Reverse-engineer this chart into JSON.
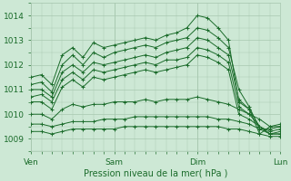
{
  "bg_color": "#cde8d5",
  "grid_color": "#a8c8b0",
  "line_color": "#1a6b2a",
  "xlabel": "Pression niveau de la mer( hPa )",
  "xlim": [
    0,
    72
  ],
  "ylim": [
    1008.5,
    1014.5
  ],
  "yticks": [
    1009,
    1010,
    1011,
    1012,
    1013,
    1014
  ],
  "xtick_positions": [
    0,
    24,
    48,
    72
  ],
  "xtick_labels": [
    "Ven",
    "Sam",
    "Dim",
    "Lun"
  ],
  "lines": [
    {
      "x": [
        0,
        3,
        6,
        9,
        12,
        15,
        18,
        21,
        24,
        27,
        30,
        33,
        36,
        39,
        42,
        45,
        48,
        51,
        54,
        57,
        60,
        63,
        66,
        69,
        72
      ],
      "y": [
        1011.5,
        1011.6,
        1011.2,
        1012.4,
        1012.7,
        1012.3,
        1012.9,
        1012.7,
        1012.8,
        1012.9,
        1013.0,
        1013.1,
        1013.0,
        1013.2,
        1013.3,
        1013.5,
        1014.0,
        1013.9,
        1013.5,
        1013.0,
        1010.5,
        1010.2,
        1009.2,
        1009.5,
        1009.6
      ]
    },
    {
      "x": [
        0,
        3,
        6,
        9,
        12,
        15,
        18,
        21,
        24,
        27,
        30,
        33,
        36,
        39,
        42,
        45,
        48,
        51,
        54,
        57,
        60,
        63,
        66,
        69,
        72
      ],
      "y": [
        1011.2,
        1011.3,
        1010.9,
        1012.0,
        1012.4,
        1012.0,
        1012.5,
        1012.3,
        1012.5,
        1012.6,
        1012.7,
        1012.8,
        1012.7,
        1012.9,
        1013.0,
        1013.1,
        1013.5,
        1013.4,
        1013.1,
        1012.7,
        1011.0,
        1010.3,
        1009.4,
        1009.4,
        1009.5
      ]
    },
    {
      "x": [
        0,
        3,
        6,
        9,
        12,
        15,
        18,
        21,
        24,
        27,
        30,
        33,
        36,
        39,
        42,
        45,
        48,
        51,
        54,
        57,
        60,
        63,
        66,
        69,
        72
      ],
      "y": [
        1011.0,
        1011.0,
        1010.7,
        1011.7,
        1012.0,
        1011.7,
        1012.1,
        1012.0,
        1012.1,
        1012.2,
        1012.3,
        1012.4,
        1012.3,
        1012.5,
        1012.6,
        1012.7,
        1013.1,
        1013.0,
        1012.7,
        1012.4,
        1010.6,
        1010.2,
        1009.5,
        1009.3,
        1009.4
      ]
    },
    {
      "x": [
        0,
        3,
        6,
        9,
        12,
        15,
        18,
        21,
        24,
        27,
        30,
        33,
        36,
        39,
        42,
        45,
        48,
        51,
        54,
        57,
        60,
        63,
        66,
        69,
        72
      ],
      "y": [
        1010.7,
        1010.8,
        1010.5,
        1011.4,
        1011.7,
        1011.4,
        1011.8,
        1011.7,
        1011.8,
        1011.9,
        1012.0,
        1012.1,
        1012.0,
        1012.2,
        1012.2,
        1012.3,
        1012.7,
        1012.6,
        1012.4,
        1012.1,
        1010.3,
        1010.0,
        1009.5,
        1009.2,
        1009.3
      ]
    },
    {
      "x": [
        0,
        3,
        6,
        9,
        12,
        15,
        18,
        21,
        24,
        27,
        30,
        33,
        36,
        39,
        42,
        45,
        48,
        51,
        54,
        57,
        60,
        63,
        66,
        69,
        72
      ],
      "y": [
        1010.5,
        1010.5,
        1010.2,
        1011.1,
        1011.4,
        1011.1,
        1011.5,
        1011.4,
        1011.5,
        1011.6,
        1011.7,
        1011.8,
        1011.7,
        1011.8,
        1011.9,
        1012.0,
        1012.4,
        1012.3,
        1012.1,
        1011.8,
        1010.0,
        1009.8,
        1009.5,
        1009.2,
        1009.2
      ]
    },
    {
      "x": [
        0,
        3,
        6,
        9,
        12,
        15,
        18,
        21,
        24,
        27,
        30,
        33,
        36,
        39,
        42,
        45,
        48,
        51,
        54,
        57,
        60,
        63,
        66,
        69,
        72
      ],
      "y": [
        1010.0,
        1010.0,
        1009.8,
        1010.2,
        1010.4,
        1010.3,
        1010.4,
        1010.4,
        1010.5,
        1010.5,
        1010.5,
        1010.6,
        1010.5,
        1010.6,
        1010.6,
        1010.6,
        1010.7,
        1010.6,
        1010.5,
        1010.4,
        1010.2,
        1010.0,
        1009.8,
        1009.5,
        1009.5
      ]
    },
    {
      "x": [
        0,
        3,
        6,
        9,
        12,
        15,
        18,
        21,
        24,
        27,
        30,
        33,
        36,
        39,
        42,
        45,
        48,
        51,
        54,
        57,
        60,
        63,
        66,
        69,
        72
      ],
      "y": [
        1009.6,
        1009.6,
        1009.5,
        1009.6,
        1009.7,
        1009.7,
        1009.7,
        1009.8,
        1009.8,
        1009.8,
        1009.9,
        1009.9,
        1009.9,
        1009.9,
        1009.9,
        1009.9,
        1009.9,
        1009.9,
        1009.8,
        1009.8,
        1009.7,
        1009.6,
        1009.4,
        1009.2,
        1009.2
      ]
    },
    {
      "x": [
        0,
        3,
        6,
        9,
        12,
        15,
        18,
        21,
        24,
        27,
        30,
        33,
        36,
        39,
        42,
        45,
        48,
        51,
        54,
        57,
        60,
        63,
        66,
        69,
        72
      ],
      "y": [
        1009.3,
        1009.3,
        1009.2,
        1009.3,
        1009.4,
        1009.4,
        1009.4,
        1009.4,
        1009.4,
        1009.5,
        1009.5,
        1009.5,
        1009.5,
        1009.5,
        1009.5,
        1009.5,
        1009.5,
        1009.5,
        1009.5,
        1009.4,
        1009.4,
        1009.3,
        1009.2,
        1009.1,
        1009.1
      ]
    }
  ]
}
